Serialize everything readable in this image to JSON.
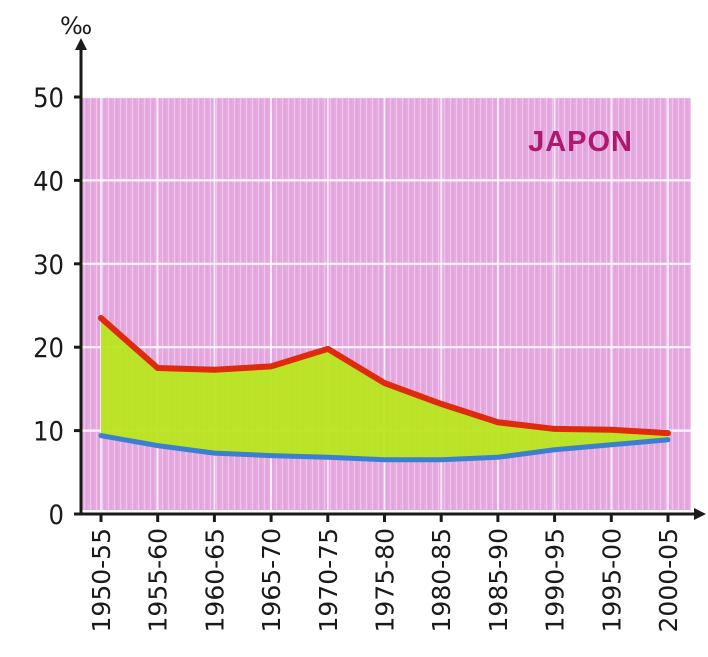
{
  "chart_data": {
    "type": "area",
    "title": "JAPON",
    "ylabel": "‰",
    "xlabel": "",
    "categories": [
      "1950-55",
      "1955-60",
      "1960-65",
      "1965-70",
      "1970-75",
      "1975-80",
      "1980-85",
      "1985-90",
      "1990-95",
      "1995-00",
      "2000-05"
    ],
    "yticks": [
      0,
      10,
      20,
      30,
      40,
      50
    ],
    "ylim": [
      0,
      50
    ],
    "grid": true,
    "series": [
      {
        "values": [
          23.5,
          17.5,
          17.3,
          17.7,
          19.8,
          15.7,
          13.2,
          11.0,
          10.2,
          10.1,
          9.7
        ],
        "color": "#e02a0c"
      },
      {
        "values": [
          9.4,
          8.2,
          7.3,
          7.0,
          6.8,
          6.5,
          6.5,
          6.8,
          7.7,
          8.3,
          8.9
        ],
        "color": "#3b7fd0"
      }
    ],
    "fill_between_color": "#b8e61e",
    "background_color": "#e4a8e0"
  }
}
